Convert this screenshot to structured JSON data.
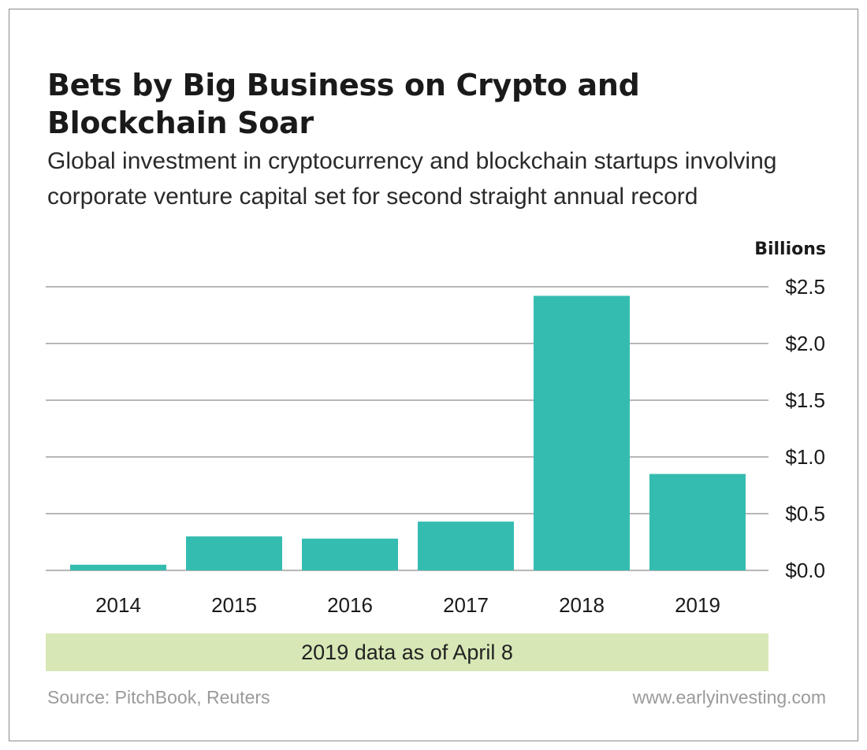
{
  "header": {
    "title": "Bets by Big Business on Crypto and Blockchain Soar",
    "subtitle": "Global investment in cryptocurrency and blockchain startups involving corporate venture capital set for second straight annual record"
  },
  "chart_data": {
    "type": "bar",
    "title": "Bets by Big Business on Crypto and Blockchain Soar",
    "subtitle": "Global investment in cryptocurrency and blockchain startups involving corporate venture capital set for second straight annual record",
    "unit_label": "Billions",
    "categories": [
      "2014",
      "2015",
      "2016",
      "2017",
      "2018",
      "2019"
    ],
    "values": [
      0.05,
      0.3,
      0.28,
      0.43,
      2.42,
      0.85
    ],
    "ylim": [
      0,
      2.5
    ],
    "yticks": [
      0,
      0.5,
      1.0,
      1.5,
      2.0,
      2.5
    ],
    "ytick_labels": [
      "$0.0",
      "$0.5",
      "$1.0",
      "$1.5",
      "$2.0",
      "$2.5"
    ],
    "y_axis_side": "right",
    "grid": true,
    "bar_color": "#35bcb0",
    "grid_color": "#8c8c8c"
  },
  "note": "2019 data as of April 8",
  "footer": {
    "source": "Source: PitchBook, Reuters",
    "site": "www.earlyinvesting.com"
  },
  "colors": {
    "bar": "#35bcb0",
    "note_background": "#d7e8b6",
    "footer_text": "#9a9a9a"
  }
}
